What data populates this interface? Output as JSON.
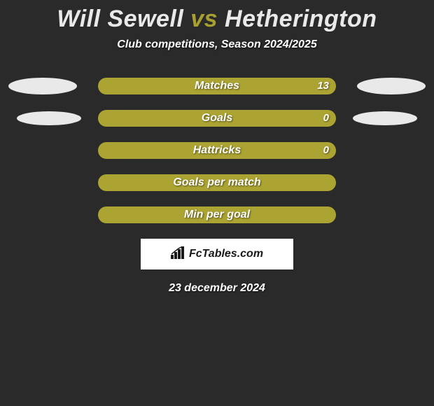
{
  "title": {
    "prefix": "Will Sewell ",
    "vs": "vs",
    "suffix": " Hetherington",
    "prefix_color": "#e9e9e9",
    "vs_color": "#a6a030",
    "suffix_color": "#e9e9e9",
    "fontsize": 34
  },
  "subtitle": "Club competitions, Season 2024/2025",
  "background_color": "#2a2a2a",
  "bars": [
    {
      "label": "Matches",
      "value": "13",
      "color": "#aca432",
      "left_ellipse": "lg",
      "right_ellipse": "lg"
    },
    {
      "label": "Goals",
      "value": "0",
      "color": "#aca432",
      "left_ellipse": "sm",
      "right_ellipse": "sm"
    },
    {
      "label": "Hattricks",
      "value": "0",
      "color": "#aca432",
      "left_ellipse": "none",
      "right_ellipse": "none"
    },
    {
      "label": "Goals per match",
      "value": "",
      "color": "#aca432",
      "left_ellipse": "none",
      "right_ellipse": "none"
    },
    {
      "label": "Min per goal",
      "value": "",
      "color": "#aca432",
      "left_ellipse": "none",
      "right_ellipse": "none"
    }
  ],
  "logo_text": "FcTables.com",
  "date": "23 december 2024",
  "ellipse_color": "#e9e9e9"
}
